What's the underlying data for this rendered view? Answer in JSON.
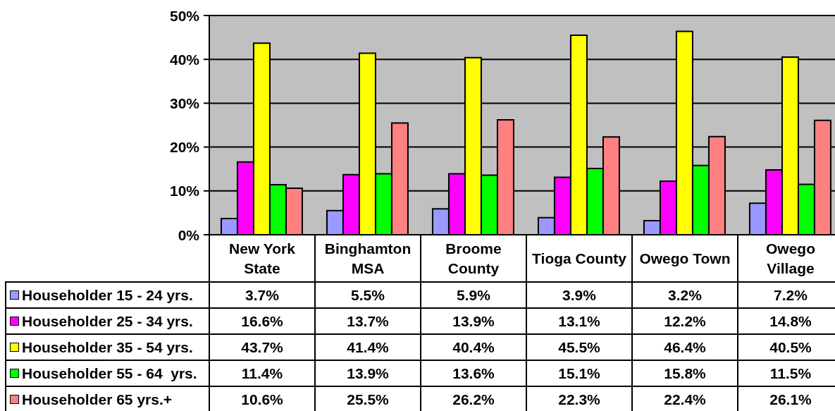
{
  "chart_data": {
    "type": "bar",
    "categories": [
      "New York State",
      "Binghamton MSA",
      "Broome County",
      "Tioga County",
      "Owego Town",
      "Owego Village"
    ],
    "series": [
      {
        "name": "Householder 15 - 24 yrs.",
        "color": "#9999ff",
        "values": [
          3.7,
          5.5,
          5.9,
          3.9,
          3.2,
          7.2
        ],
        "value_labels": [
          "3.7%",
          "5.5%",
          "5.9%",
          "3.9%",
          "3.2%",
          "7.2%"
        ]
      },
      {
        "name": "Householder 25 - 34 yrs.",
        "color": "#ff00ff",
        "values": [
          16.6,
          13.7,
          13.9,
          13.1,
          12.2,
          14.8
        ],
        "value_labels": [
          "16.6%",
          "13.7%",
          "13.9%",
          "13.1%",
          "12.2%",
          "14.8%"
        ]
      },
      {
        "name": "Householder 35 - 54 yrs.",
        "color": "#ffff00",
        "values": [
          43.7,
          41.4,
          40.4,
          45.5,
          46.4,
          40.5
        ],
        "value_labels": [
          "43.7%",
          "41.4%",
          "40.4%",
          "45.5%",
          "46.4%",
          "40.5%"
        ]
      },
      {
        "name": "Householder 55 - 64  yrs.",
        "color": "#00ff00",
        "values": [
          11.4,
          13.9,
          13.6,
          15.1,
          15.8,
          11.5
        ],
        "value_labels": [
          "11.4%",
          "13.9%",
          "13.6%",
          "15.1%",
          "15.8%",
          "11.5%"
        ]
      },
      {
        "name": "Householder 65 yrs.+",
        "color": "#ff8080",
        "values": [
          10.6,
          25.5,
          26.2,
          22.3,
          22.4,
          26.1
        ],
        "value_labels": [
          "10.6%",
          "25.5%",
          "26.2%",
          "22.3%",
          "22.4%",
          "26.1%"
        ]
      }
    ],
    "ylim": [
      0,
      50
    ],
    "yticks": [
      {
        "value": 0,
        "label": "0%"
      },
      {
        "value": 10,
        "label": "10%"
      },
      {
        "value": 20,
        "label": "20%"
      },
      {
        "value": 30,
        "label": "30%"
      },
      {
        "value": 40,
        "label": "40%"
      },
      {
        "value": 50,
        "label": "50%"
      }
    ],
    "grid": "y",
    "legend": "bottom left"
  }
}
